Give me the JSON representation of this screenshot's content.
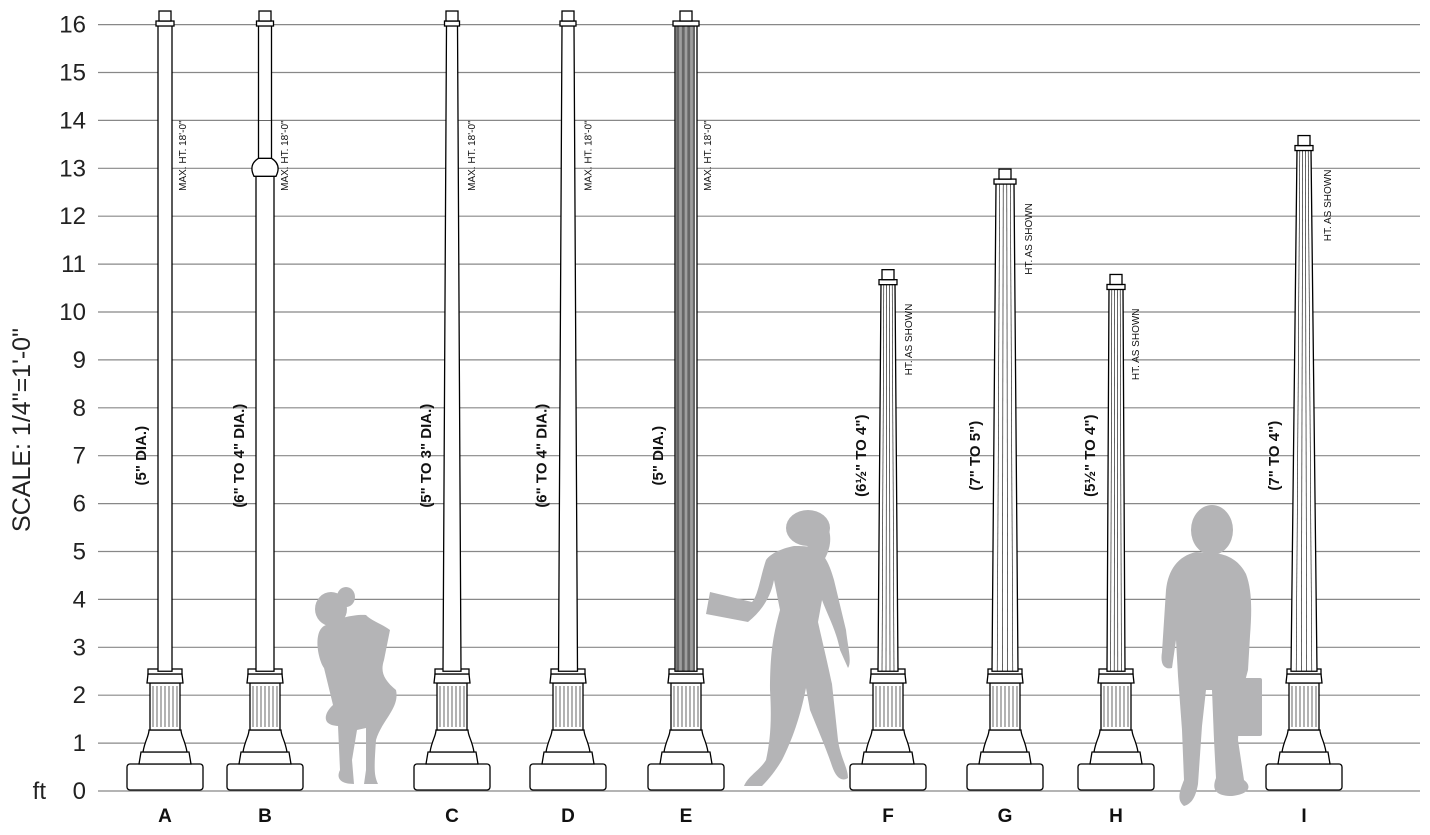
{
  "scale_label": "SCALE: 1/4\"=1'-0\"",
  "unit_label": "ft",
  "y_ticks": [
    0,
    1,
    2,
    3,
    4,
    5,
    6,
    7,
    8,
    9,
    10,
    11,
    12,
    13,
    14,
    15,
    16
  ],
  "posts": [
    {
      "letter": "A",
      "dia": "(5\" DIA.)",
      "ht": "MAX. HT. 18'-0\"",
      "height_ft": 16.2,
      "style": "smooth",
      "top_w": 14,
      "bot_w": 14
    },
    {
      "letter": "B",
      "dia": "(6\" TO 4\" DIA.)",
      "ht": "MAX. HT. 18'-0\"",
      "height_ft": 16.2,
      "style": "stepped",
      "top_w": 13,
      "bot_w": 18
    },
    {
      "letter": "C",
      "dia": "(5\" TO 3\" DIA.)",
      "ht": "MAX. HT. 18'-0\"",
      "height_ft": 16.2,
      "style": "smooth",
      "top_w": 11,
      "bot_w": 18
    },
    {
      "letter": "D",
      "dia": "(6\" TO 4\" DIA.)",
      "ht": "MAX. HT. 18'-0\"",
      "height_ft": 16.2,
      "style": "smooth",
      "top_w": 12,
      "bot_w": 19
    },
    {
      "letter": "E",
      "dia": "(5\" DIA.)",
      "ht": "MAX. HT. 18'-0\"",
      "height_ft": 16.2,
      "style": "dense",
      "top_w": 22,
      "bot_w": 22
    },
    {
      "letter": "F",
      "dia": "(6½\" TO 4\")",
      "ht": "HT. AS SHOWN",
      "height_ft": 10.8,
      "style": "fluted",
      "top_w": 14,
      "bot_w": 20
    },
    {
      "letter": "G",
      "dia": "(7\" TO 5\")",
      "ht": "HT. AS SHOWN",
      "height_ft": 12.9,
      "style": "fluted",
      "top_w": 18,
      "bot_w": 26
    },
    {
      "letter": "H",
      "dia": "(5½\" TO 4\")",
      "ht": "HT. AS SHOWN",
      "height_ft": 10.7,
      "style": "fluted",
      "top_w": 14,
      "bot_w": 18
    },
    {
      "letter": "I",
      "dia": "(7\" TO 4\")",
      "ht": "HT. AS SHOWN",
      "height_ft": 13.6,
      "style": "fluted",
      "top_w": 14,
      "bot_w": 26
    }
  ],
  "colors": {
    "silhouette": "#b4b4b6",
    "grid": "#888888"
  }
}
